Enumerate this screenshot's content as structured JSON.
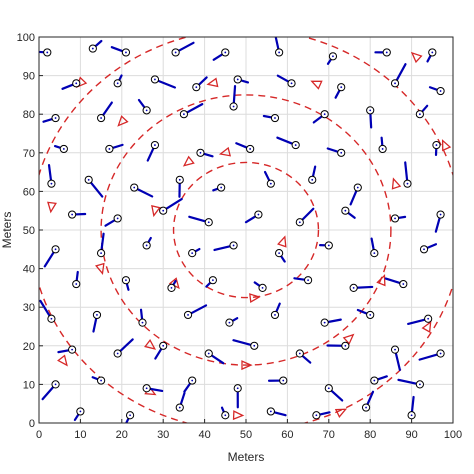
{
  "chart_data": {
    "type": "scatter",
    "title": "",
    "xlabel": "Meters",
    "ylabel": "Meters",
    "xlim": [
      0,
      100
    ],
    "ylim": [
      0,
      100
    ],
    "x_ticks": [
      "0",
      "10",
      "20",
      "30",
      "40",
      "50",
      "60",
      "70",
      "80",
      "90",
      "100"
    ],
    "y_ticks": [
      "0",
      "10",
      "20",
      "30",
      "40",
      "50",
      "60",
      "70",
      "80",
      "90",
      "100"
    ],
    "grid": true,
    "colors": {
      "sensor": "#0000b4",
      "trajectory": "#d62828",
      "grid": "#dcdcdc"
    },
    "trajectory": {
      "shape": "spiral",
      "center": [
        50,
        50
      ],
      "rings": [
        {
          "radius": 17.5,
          "direction_markers": [
            [
              45,
              70
            ],
            [
              36,
              67.5
            ],
            [
              59,
              47
            ],
            [
              52,
              32.5
            ],
            [
              33,
              36
            ],
            [
              28,
              55
            ]
          ]
        },
        {
          "radius": 35,
          "direction_markers": [
            [
              67,
              88
            ],
            [
              42,
              88
            ],
            [
              20,
              78
            ],
            [
              15,
              40
            ],
            [
              27,
              20
            ],
            [
              50,
              15
            ],
            [
              75,
              22
            ],
            [
              83,
              37
            ],
            [
              86,
              62
            ]
          ]
        },
        {
          "radius": 52,
          "direction_markers": [
            [
              91,
              95
            ],
            [
              98,
              72
            ],
            [
              94,
              25
            ],
            [
              73,
              3
            ],
            [
              48,
              2
            ],
            [
              27,
              8
            ],
            [
              6,
              16
            ],
            [
              3,
              56
            ],
            [
              10,
              88
            ]
          ]
        }
      ]
    },
    "sensors": [
      [
        2,
        96
      ],
      [
        13,
        97
      ],
      [
        21,
        96
      ],
      [
        33,
        96
      ],
      [
        45,
        96
      ],
      [
        58,
        96
      ],
      [
        71,
        95
      ],
      [
        84,
        96
      ],
      [
        95,
        96
      ],
      [
        9,
        88
      ],
      [
        19,
        88
      ],
      [
        28,
        89
      ],
      [
        38,
        87
      ],
      [
        48,
        89
      ],
      [
        61,
        88
      ],
      [
        73,
        87
      ],
      [
        86,
        88
      ],
      [
        97,
        86
      ],
      [
        4,
        79
      ],
      [
        15,
        79
      ],
      [
        26,
        81
      ],
      [
        35,
        80
      ],
      [
        47,
        82
      ],
      [
        57,
        79
      ],
      [
        69,
        80
      ],
      [
        80,
        81
      ],
      [
        92,
        80
      ],
      [
        6,
        71
      ],
      [
        17,
        71
      ],
      [
        28,
        72
      ],
      [
        39,
        70
      ],
      [
        51,
        71
      ],
      [
        62,
        72
      ],
      [
        73,
        70
      ],
      [
        83,
        71
      ],
      [
        96,
        72
      ],
      [
        3,
        62
      ],
      [
        12,
        63
      ],
      [
        23,
        61
      ],
      [
        34,
        63
      ],
      [
        44,
        61
      ],
      [
        56,
        62
      ],
      [
        66,
        63
      ],
      [
        77,
        61
      ],
      [
        89,
        62
      ],
      [
        8,
        54
      ],
      [
        19,
        53
      ],
      [
        30,
        55
      ],
      [
        41,
        52
      ],
      [
        53,
        54
      ],
      [
        63,
        52
      ],
      [
        74,
        55
      ],
      [
        86,
        53
      ],
      [
        97,
        54
      ],
      [
        4,
        45
      ],
      [
        15,
        44
      ],
      [
        26,
        46
      ],
      [
        37,
        44
      ],
      [
        47,
        46
      ],
      [
        58,
        44
      ],
      [
        70,
        46
      ],
      [
        81,
        44
      ],
      [
        93,
        45
      ],
      [
        9,
        36
      ],
      [
        21,
        37
      ],
      [
        32,
        35
      ],
      [
        42,
        37
      ],
      [
        54,
        35
      ],
      [
        65,
        37
      ],
      [
        76,
        35
      ],
      [
        88,
        36
      ],
      [
        3,
        27
      ],
      [
        14,
        28
      ],
      [
        25,
        26
      ],
      [
        36,
        28
      ],
      [
        46,
        26
      ],
      [
        57,
        28
      ],
      [
        69,
        26
      ],
      [
        80,
        28
      ],
      [
        94,
        27
      ],
      [
        8,
        19
      ],
      [
        19,
        18
      ],
      [
        30,
        20
      ],
      [
        41,
        18
      ],
      [
        52,
        20
      ],
      [
        63,
        18
      ],
      [
        74,
        20
      ],
      [
        86,
        19
      ],
      [
        97,
        18
      ],
      [
        4,
        10
      ],
      [
        15,
        11
      ],
      [
        26,
        9
      ],
      [
        37,
        11
      ],
      [
        48,
        9
      ],
      [
        59,
        11
      ],
      [
        70,
        9
      ],
      [
        81,
        11
      ],
      [
        92,
        10
      ],
      [
        10,
        3
      ],
      [
        22,
        2
      ],
      [
        34,
        4
      ],
      [
        45,
        2
      ],
      [
        56,
        3
      ],
      [
        67,
        2
      ],
      [
        79,
        4
      ],
      [
        90,
        2
      ]
    ]
  }
}
